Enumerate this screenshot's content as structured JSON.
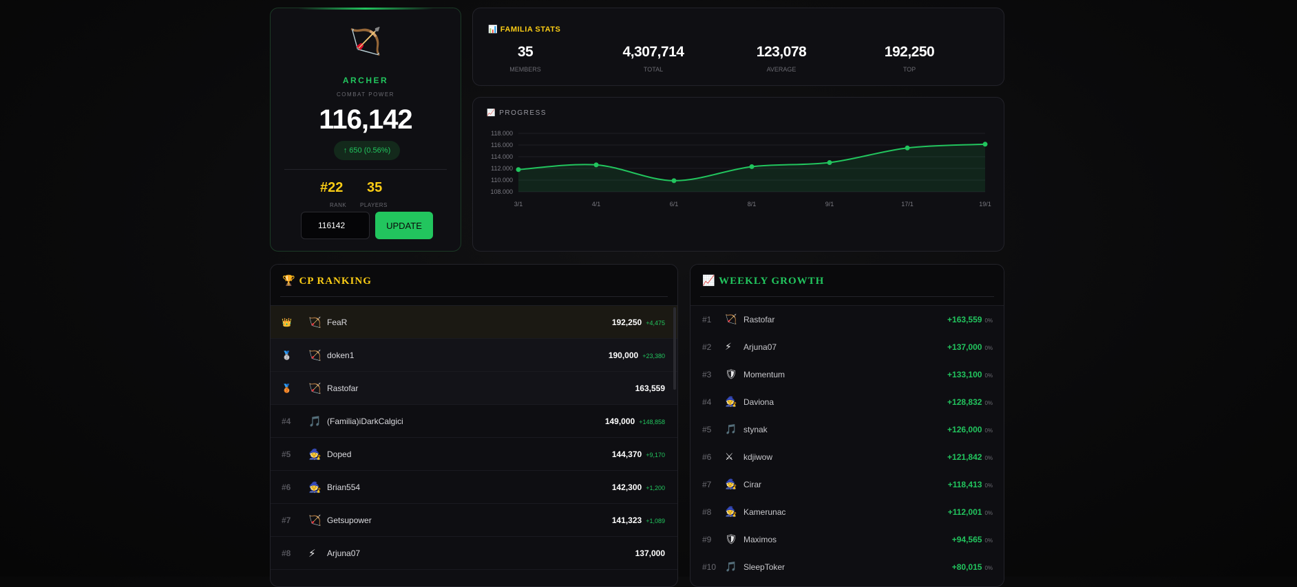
{
  "hero": {
    "class_icon": "🏹",
    "class_name": "ARCHER",
    "cp_label": "COMBAT POWER",
    "cp_value": "116,142",
    "delta": "↑ 650 (0.56%)",
    "rank": "#22",
    "rank_label": "RANK",
    "players": "35",
    "players_label": "PLAYERS",
    "input_value": "116142",
    "update_label": "UPDATE"
  },
  "stats": {
    "icon": "📊",
    "title": "FAMILIA STATS",
    "items": [
      {
        "value": "35",
        "label": "MEMBERS"
      },
      {
        "value": "4,307,714",
        "label": "TOTAL"
      },
      {
        "value": "123,078",
        "label": "AVERAGE"
      },
      {
        "value": "192,250",
        "label": "TOP"
      }
    ]
  },
  "progress": {
    "icon": "📈",
    "title": "PROGRESS"
  },
  "chart_data": {
    "type": "area",
    "x": [
      "3/1",
      "4/1",
      "6/1",
      "8/1",
      "9/1",
      "17/1",
      "19/1"
    ],
    "values": [
      111800,
      112600,
      109900,
      112300,
      113000,
      115500,
      116142
    ],
    "ylim": [
      108000,
      118000
    ],
    "yticks": [
      "108.000",
      "110.000",
      "112.000",
      "114.000",
      "116.000",
      "118.000"
    ],
    "grid": true,
    "color": "#22c55e"
  },
  "ranking": {
    "icon": "🏆",
    "title": "CP RANKING",
    "rows": [
      {
        "pos": "👑",
        "icon": "🏹",
        "name": "FeaR",
        "cp": "192,250",
        "gain": "+4,475"
      },
      {
        "pos": "🥈",
        "icon": "🏹",
        "name": "doken1",
        "cp": "190,000",
        "gain": "+23,380"
      },
      {
        "pos": "🥉",
        "icon": "🏹",
        "name": "Rastofar",
        "cp": "163,559",
        "gain": ""
      },
      {
        "pos": "#4",
        "icon": "🎵",
        "name": "(Familia)iDarkCalgici",
        "cp": "149,000",
        "gain": "+148,858"
      },
      {
        "pos": "#5",
        "icon": "🧙",
        "name": "Doped",
        "cp": "144,370",
        "gain": "+9,170"
      },
      {
        "pos": "#6",
        "icon": "🧙",
        "name": "Brian554",
        "cp": "142,300",
        "gain": "+1,200"
      },
      {
        "pos": "#7",
        "icon": "🏹",
        "name": "Getsupower",
        "cp": "141,323",
        "gain": "+1,089"
      },
      {
        "pos": "#8",
        "icon": "⚡",
        "name": "Arjuna07",
        "cp": "137,000",
        "gain": ""
      }
    ]
  },
  "weekly": {
    "icon": "📈",
    "title": "WEEKLY GROWTH",
    "rows": [
      {
        "pos": "#1",
        "icon": "🏹",
        "name": "Rastofar",
        "gain": "+163,559",
        "pct": "0%"
      },
      {
        "pos": "#2",
        "icon": "⚡",
        "name": "Arjuna07",
        "gain": "+137,000",
        "pct": "0%"
      },
      {
        "pos": "#3",
        "icon": "🛡",
        "name": "Momentum",
        "gain": "+133,100",
        "pct": "0%"
      },
      {
        "pos": "#4",
        "icon": "🧙",
        "name": "Daviona",
        "gain": "+128,832",
        "pct": "0%"
      },
      {
        "pos": "#5",
        "icon": "🎵",
        "name": "stynak",
        "gain": "+126,000",
        "pct": "0%"
      },
      {
        "pos": "#6",
        "icon": "⚔",
        "name": "kdjiwow",
        "gain": "+121,842",
        "pct": "0%"
      },
      {
        "pos": "#7",
        "icon": "🧙",
        "name": "Cirar",
        "gain": "+118,413",
        "pct": "0%"
      },
      {
        "pos": "#8",
        "icon": "🧙",
        "name": "Kamerunac",
        "gain": "+112,001",
        "pct": "0%"
      },
      {
        "pos": "#9",
        "icon": "🛡",
        "name": "Maximos",
        "gain": "+94,565",
        "pct": "0%"
      },
      {
        "pos": "#10",
        "icon": "🎵",
        "name": "SleepToker",
        "gain": "+80,015",
        "pct": "0%"
      }
    ]
  }
}
